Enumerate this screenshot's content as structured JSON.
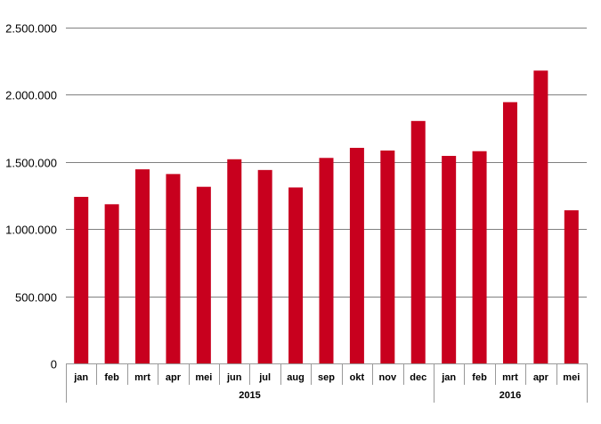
{
  "chart_data": {
    "type": "bar",
    "title": "",
    "xlabel": "",
    "ylabel": "",
    "ylim": [
      0,
      2500000
    ],
    "yticks": [
      0,
      500000,
      1000000,
      1500000,
      2000000,
      2500000
    ],
    "ytick_labels": [
      "0",
      "500.000",
      "1.000.000",
      "1.500.000",
      "2.000.000",
      "2.500.000"
    ],
    "grid": true,
    "legend": "none",
    "bar_color": "#c8001e",
    "categories": [
      "jan",
      "feb",
      "mrt",
      "apr",
      "mei",
      "jun",
      "jul",
      "aug",
      "sep",
      "okt",
      "nov",
      "dec",
      "jan",
      "feb",
      "mrt",
      "apr",
      "mei"
    ],
    "values": [
      1240000,
      1185000,
      1445000,
      1410000,
      1315000,
      1520000,
      1440000,
      1310000,
      1530000,
      1605000,
      1585000,
      1805000,
      1545000,
      1580000,
      1945000,
      2180000,
      1140000
    ],
    "groups": [
      {
        "label": "2015",
        "count": 12
      },
      {
        "label": "2016",
        "count": 5
      }
    ]
  }
}
